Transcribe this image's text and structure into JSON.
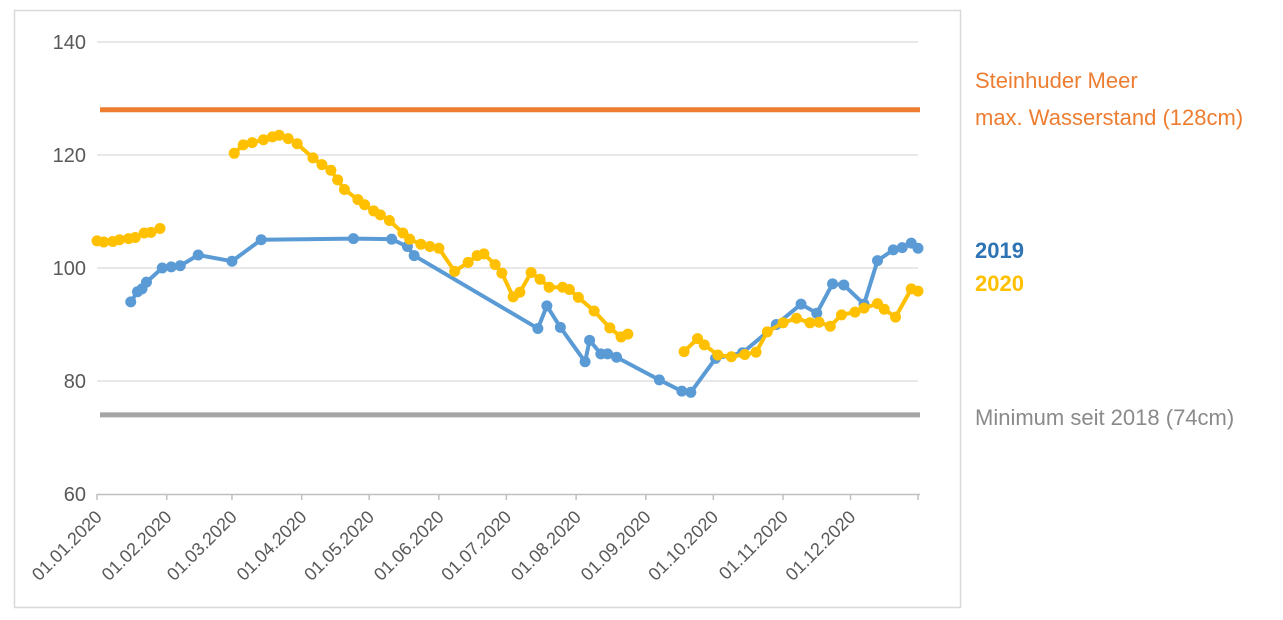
{
  "annotations": {
    "max_line_label_1": "Steinhuder Meer",
    "max_line_label_2": "max. Wasserstand (128cm)",
    "legend_2019": "2019",
    "legend_2020": "2020",
    "min_line_label": "Minimum seit 2018 (74cm)"
  },
  "colors": {
    "series_2019": "#5B9BD5",
    "series_2020": "#FFC000",
    "max_ref_line": "#ED7D31",
    "min_ref_line": "#A5A5A5",
    "legend_2019_text": "#2E74B5",
    "legend_2020_text": "#FFC000",
    "max_text": "#ED7D31",
    "min_text": "#8A8A8A",
    "axis_text": "#595959",
    "gridline": "#D9D9D9",
    "axis_line": "#BFBFBF",
    "frame": "#D9D9D9"
  },
  "chart_data": {
    "type": "line",
    "title": "",
    "xlabel": "",
    "ylabel": "",
    "ylim": [
      60,
      140
    ],
    "y_tick_values": [
      140,
      120,
      100,
      80,
      60
    ],
    "x_tick_labels": [
      "01.01.2020",
      "01.02.2020",
      "01.03.2020",
      "01.04.2020",
      "01.05.2020",
      "01.06.2020",
      "01.07.2020",
      "01.08.2020",
      "01.09.2020",
      "01.10.2020",
      "01.11.2020",
      "01.12.2020"
    ],
    "month_start_days": [
      0,
      31,
      60,
      91,
      121,
      152,
      182,
      213,
      244,
      274,
      305,
      335
    ],
    "x_axis_span_days": 365,
    "grid": true,
    "legend_position": "right",
    "ref_lines": [
      {
        "name": "max. Wasserstand",
        "value": 128,
        "color": "#ED7D31"
      },
      {
        "name": "Minimum seit 2018",
        "value": 74,
        "color": "#A5A5A5"
      }
    ],
    "series": [
      {
        "name": "2019",
        "color": "#5B9BD5",
        "unit": "cm",
        "segments": [
          [
            [
              15,
              94
            ],
            [
              18,
              95.8
            ],
            [
              20,
              96.3
            ],
            [
              22,
              97.5
            ],
            [
              29,
              100
            ],
            [
              33,
              100.2
            ],
            [
              37,
              100.4
            ],
            [
              45,
              102.3
            ],
            [
              60,
              101.2
            ],
            [
              73,
              105
            ],
            [
              114,
              105.2
            ],
            [
              131,
              105.1
            ],
            [
              138,
              103.8
            ],
            [
              141,
              102.2
            ],
            [
              196,
              89.3
            ],
            [
              200,
              93.3
            ],
            [
              206,
              89.5
            ],
            [
              217,
              83.4
            ],
            [
              219,
              87.2
            ],
            [
              224,
              84.8
            ],
            [
              227,
              84.8
            ],
            [
              231,
              84.2
            ],
            [
              250,
              80.2
            ],
            [
              260,
              78.2
            ],
            [
              264,
              78
            ],
            [
              275,
              84
            ],
            [
              287,
              85
            ],
            [
              302,
              90
            ],
            [
              313,
              93.6
            ],
            [
              320,
              92
            ],
            [
              327,
              97.2
            ],
            [
              332,
              97
            ],
            [
              341,
              93.6
            ],
            [
              347,
              101.3
            ],
            [
              354,
              103.2
            ],
            [
              358,
              103.6
            ],
            [
              362,
              104.4
            ],
            [
              365,
              103.5
            ]
          ]
        ]
      },
      {
        "name": "2020",
        "color": "#FFC000",
        "unit": "cm",
        "segments": [
          [
            [
              0,
              104.8
            ],
            [
              3,
              104.6
            ],
            [
              7,
              104.7
            ],
            [
              10,
              105
            ],
            [
              14,
              105.2
            ],
            [
              17,
              105.4
            ],
            [
              21,
              106.2
            ],
            [
              24,
              106.3
            ],
            [
              28,
              107
            ]
          ],
          [
            [
              61,
              120.3
            ],
            [
              65,
              121.8
            ],
            [
              69,
              122.2
            ],
            [
              74,
              122.7
            ],
            [
              78,
              123.2
            ],
            [
              81,
              123.5
            ],
            [
              85,
              122.9
            ],
            [
              89,
              122
            ],
            [
              96,
              119.5
            ],
            [
              100,
              118.3
            ],
            [
              104,
              117.3
            ],
            [
              107,
              115.6
            ],
            [
              110,
              113.9
            ],
            [
              116,
              112.1
            ],
            [
              119,
              111.2
            ],
            [
              123,
              110.1
            ],
            [
              126,
              109.4
            ],
            [
              130,
              108.4
            ],
            [
              136,
              106.2
            ],
            [
              139,
              105.1
            ],
            [
              144,
              104.2
            ],
            [
              148,
              103.8
            ],
            [
              152,
              103.5
            ],
            [
              159,
              99.4
            ],
            [
              165,
              101
            ],
            [
              169,
              102.2
            ],
            [
              172,
              102.5
            ],
            [
              177,
              100.6
            ],
            [
              180,
              99.1
            ],
            [
              185,
              94.9
            ],
            [
              188,
              95.7
            ],
            [
              193,
              99.2
            ],
            [
              197,
              98
            ],
            [
              201,
              96.6
            ],
            [
              207,
              96.6
            ],
            [
              210,
              96.2
            ],
            [
              214,
              94.8
            ],
            [
              221,
              92.4
            ],
            [
              228,
              89.4
            ],
            [
              233,
              87.8
            ],
            [
              236,
              88.3
            ]
          ],
          [
            [
              261,
              85.2
            ],
            [
              267,
              87.5
            ],
            [
              270,
              86.4
            ],
            [
              276,
              84.6
            ],
            [
              282,
              84.3
            ],
            [
              288,
              84.7
            ],
            [
              293,
              85.1
            ],
            [
              298,
              88.7
            ],
            [
              305,
              90.3
            ],
            [
              311,
              91.1
            ],
            [
              317,
              90.3
            ],
            [
              321,
              90.4
            ],
            [
              326,
              89.7
            ],
            [
              331,
              91.7
            ],
            [
              337,
              92.2
            ],
            [
              341,
              92.9
            ],
            [
              347,
              93.7
            ],
            [
              350,
              92.7
            ],
            [
              355,
              91.3
            ],
            [
              362,
              96.3
            ],
            [
              365,
              95.9
            ]
          ]
        ]
      }
    ]
  }
}
